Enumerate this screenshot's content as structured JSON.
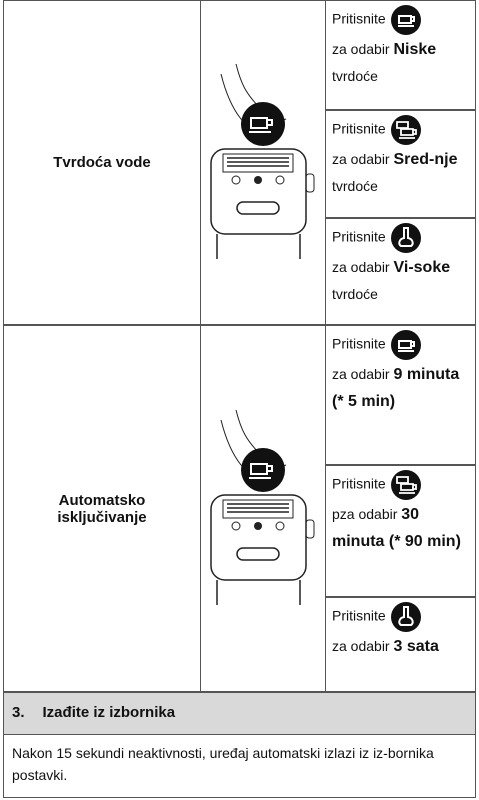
{
  "table": {
    "rows": [
      {
        "label": "Tvrdoća vode",
        "options": [
          {
            "action": "Pritisnite",
            "text": "za odabir",
            "bold": "Niske",
            "after": "tvrdoće"
          },
          {
            "action": "Pritisnite",
            "text": "za odabir",
            "bold": "Sred-nje",
            "after": "tvrdoće"
          },
          {
            "action": "Pritisnite",
            "text": "za odabir",
            "bold": "Vi-soke",
            "after": "tvrdoće"
          }
        ]
      },
      {
        "label": "Automatsko isključivanje",
        "options": [
          {
            "action": "Pritisnite",
            "text": "za odabir",
            "bold": "9 minuta (* 5 min)"
          },
          {
            "action": "Pritisnite",
            "text": "pza odabir",
            "bold": "30 minuta (* 90 min)"
          },
          {
            "action": "Pritisnite",
            "text": "za odabir",
            "bold": "3 sata"
          }
        ]
      }
    ]
  },
  "section": {
    "number": "3.",
    "title": "Izađite iz izbornika",
    "text": "Nakon 15 sekundi neaktivnosti, uređaj automatski izlazi iz iz-bornika postavki."
  }
}
